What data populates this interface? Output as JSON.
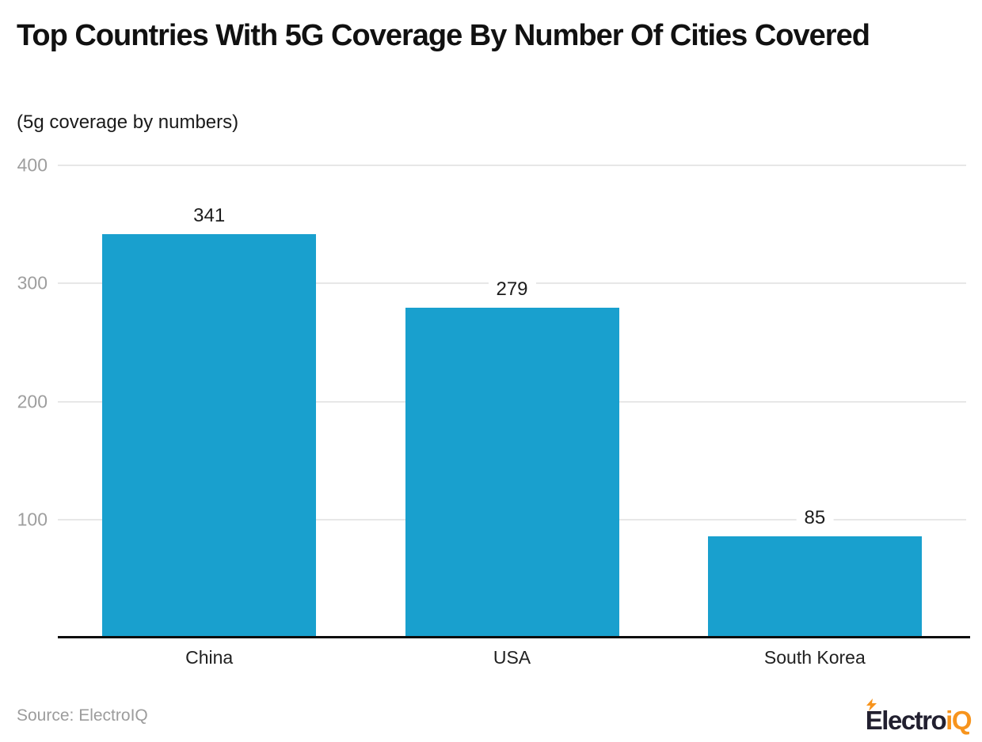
{
  "header": {
    "title": "Top Countries With 5G Coverage By Number Of Cities Covered",
    "subtitle": "(5g coverage by numbers)"
  },
  "chart_data": {
    "type": "bar",
    "title": "Top Countries With 5G Coverage By Number Of Cities Covered",
    "subtitle": "(5g coverage by numbers)",
    "categories": [
      "China",
      "USA",
      "South Korea"
    ],
    "values": [
      341,
      279,
      85
    ],
    "xlabel": "",
    "ylabel": "",
    "ylim": [
      0,
      400
    ],
    "yticks": [
      400,
      300,
      200,
      100
    ],
    "grid": true,
    "legend": "none",
    "value_labels_shown": true,
    "bar_color": "#19A0CE",
    "gridline_color": "#E7E7E7",
    "axis_line_color": "#0B0B0B",
    "tick_label_color": "#9E9E9E"
  },
  "footer": {
    "source": "Source: ElectroIQ",
    "logo": {
      "dark": "Electro",
      "accent": "iQ",
      "bolt_color": "#F7941D"
    }
  }
}
